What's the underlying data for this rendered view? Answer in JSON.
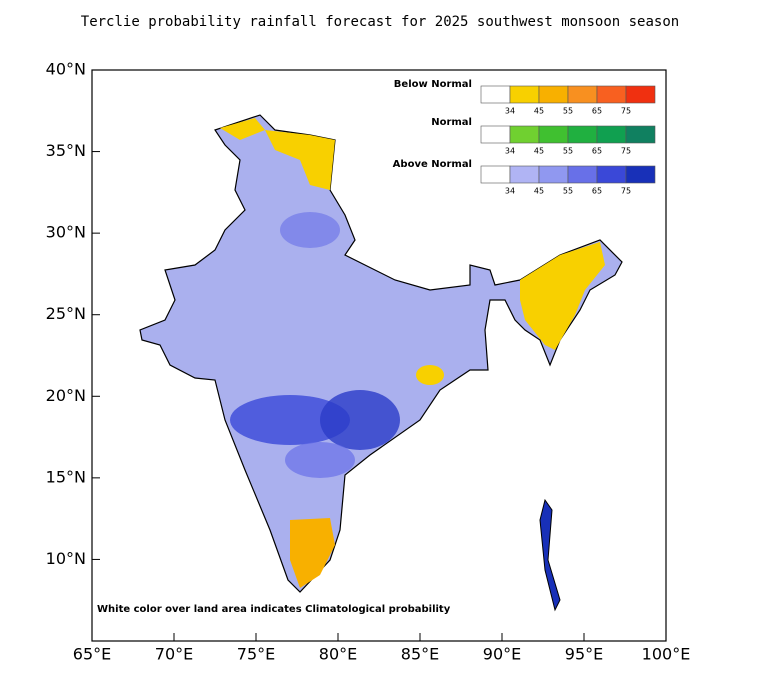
{
  "map": {
    "title": "Terclie probability rainfall forecast for 2025 southwest monsoon  season",
    "xlim": [
      65,
      100
    ],
    "ylim": [
      5,
      40
    ],
    "xticks": [
      {
        "value": 65,
        "label": "65°E"
      },
      {
        "value": 70,
        "label": "70°E"
      },
      {
        "value": 75,
        "label": "75°E"
      },
      {
        "value": 80,
        "label": "80°E"
      },
      {
        "value": 85,
        "label": "85°E"
      },
      {
        "value": 90,
        "label": "90°E"
      },
      {
        "value": 95,
        "label": "95°E"
      },
      {
        "value": 100,
        "label": "100°E"
      }
    ],
    "yticks": [
      {
        "value": 10,
        "label": "10°N"
      },
      {
        "value": 15,
        "label": "15°N"
      },
      {
        "value": 20,
        "label": "20°N"
      },
      {
        "value": 25,
        "label": "25°N"
      },
      {
        "value": 30,
        "label": "30°N"
      },
      {
        "value": 35,
        "label": "35°N"
      },
      {
        "value": 40,
        "label": "40°N"
      }
    ],
    "legend": {
      "ticks": [
        34,
        45,
        55,
        65,
        75
      ],
      "rows": [
        {
          "label": "Below Normal",
          "colors": [
            "#ffffff",
            "#f8d000",
            "#f8b000",
            "#f89020",
            "#f86020",
            "#f03010"
          ]
        },
        {
          "label": "Normal",
          "colors": [
            "#ffffff",
            "#70d030",
            "#40c030",
            "#20b040",
            "#10a050",
            "#108060"
          ]
        },
        {
          "label": "Above Normal",
          "colors": [
            "#ffffff",
            "#b0b4f4",
            "#9098f0",
            "#6870e8",
            "#3a48d8",
            "#1830b8"
          ]
        }
      ]
    },
    "footnote": "White color over land area indicates Climatological probability"
  }
}
